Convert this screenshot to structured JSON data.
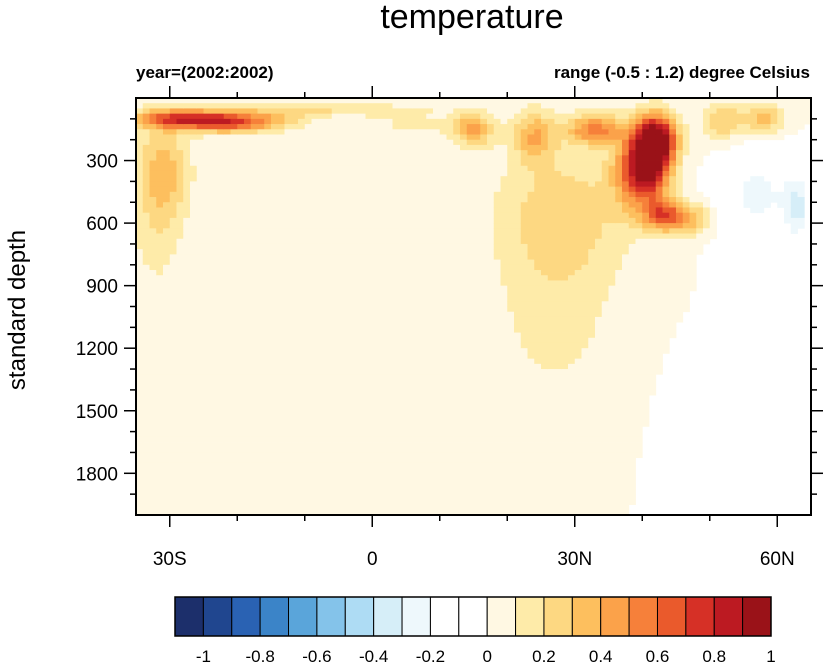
{
  "chart_data": {
    "type": "heatmap",
    "title": "temperature",
    "left_subtitle": "year=(2002:2002)",
    "right_subtitle": "range (-0.5 : 1.2) degree Celsius",
    "ylabel": "standard depth",
    "xlabel": "",
    "x_range": [
      -35,
      65
    ],
    "y_range": [
      0,
      2000
    ],
    "y_reversed": true,
    "x_ticks": [
      {
        "value": -30,
        "label": "30S"
      },
      {
        "value": 0,
        "label": "0"
      },
      {
        "value": 30,
        "label": "30N"
      },
      {
        "value": 60,
        "label": "60N"
      }
    ],
    "y_ticks": [
      {
        "value": 300,
        "label": "300"
      },
      {
        "value": 600,
        "label": "600"
      },
      {
        "value": 900,
        "label": "900"
      },
      {
        "value": 1200,
        "label": "1200"
      },
      {
        "value": 1500,
        "label": "1500"
      },
      {
        "value": 1800,
        "label": "1800"
      }
    ],
    "colorbar": {
      "colors": [
        "#1c2f6b",
        "#20468f",
        "#2a62b3",
        "#3b84c8",
        "#5aa5da",
        "#84c3ea",
        "#aedcf4",
        "#d6eef8",
        "#eef8fc",
        "#ffffff",
        "#ffffff",
        "#fff8e3",
        "#feeba9",
        "#fdd882",
        "#fdbf5e",
        "#fba24a",
        "#f6803a",
        "#ea5a2c",
        "#d63026",
        "#bc1a22",
        "#9a1218"
      ],
      "labels": [
        "-1",
        "-0.8",
        "-0.6",
        "-0.4",
        "-0.2",
        "0",
        "0.2",
        "0.4",
        "0.6",
        "0.8",
        "1"
      ]
    },
    "anomaly_regions": [
      {
        "lat": -28,
        "depth": 100,
        "value": 0.65,
        "lat_spread": 7,
        "depth_spread": 45
      },
      {
        "lat": -22,
        "depth": 120,
        "value": 0.45,
        "lat_spread": 6,
        "depth_spread": 50
      },
      {
        "lat": -16,
        "depth": 110,
        "value": 0.3,
        "lat_spread": 6,
        "depth_spread": 50
      },
      {
        "lat": -31,
        "depth": 350,
        "value": 0.35,
        "lat_spread": 4,
        "depth_spread": 250
      },
      {
        "lat": -32,
        "depth": 700,
        "value": 0.12,
        "lat_spread": 4,
        "depth_spread": 280
      },
      {
        "lat": -5,
        "depth": 60,
        "value": 0.25,
        "lat_spread": 12,
        "depth_spread": 30
      },
      {
        "lat": -3,
        "depth": 70,
        "value": -0.15,
        "lat_spread": 3,
        "depth_spread": 18
      },
      {
        "lat": 6,
        "depth": 130,
        "value": 0.12,
        "lat_spread": 8,
        "depth_spread": 60
      },
      {
        "lat": 15,
        "depth": 150,
        "value": 0.4,
        "lat_spread": 3,
        "depth_spread": 80
      },
      {
        "lat": 24,
        "depth": 180,
        "value": 0.35,
        "lat_spread": 3,
        "depth_spread": 120
      },
      {
        "lat": 33,
        "depth": 150,
        "value": 0.5,
        "lat_spread": 4,
        "depth_spread": 70
      },
      {
        "lat": 28,
        "depth": 550,
        "value": 0.25,
        "lat_spread": 10,
        "depth_spread": 350
      },
      {
        "lat": 27,
        "depth": 1100,
        "value": 0.12,
        "lat_spread": 10,
        "depth_spread": 450
      },
      {
        "lat": 42,
        "depth": 200,
        "value": 1.1,
        "lat_spread": 3,
        "depth_spread": 120
      },
      {
        "lat": 41,
        "depth": 350,
        "value": 0.8,
        "lat_spread": 3,
        "depth_spread": 140
      },
      {
        "lat": 43,
        "depth": 560,
        "value": 0.6,
        "lat_spread": 3,
        "depth_spread": 80
      },
      {
        "lat": 47,
        "depth": 580,
        "value": 0.35,
        "lat_spread": 3,
        "depth_spread": 70
      },
      {
        "lat": 38,
        "depth": 350,
        "value": 0.35,
        "lat_spread": 3,
        "depth_spread": 200
      },
      {
        "lat": 52,
        "depth": 110,
        "value": 0.3,
        "lat_spread": 3,
        "depth_spread": 90
      },
      {
        "lat": 58,
        "depth": 100,
        "value": 0.35,
        "lat_spread": 3,
        "depth_spread": 70
      },
      {
        "lat": 57,
        "depth": 450,
        "value": -0.22,
        "lat_spread": 5,
        "depth_spread": 200
      },
      {
        "lat": 63,
        "depth": 520,
        "value": -0.3,
        "lat_spread": 2,
        "depth_spread": 150
      },
      {
        "lat": 58,
        "depth": 1000,
        "value": -0.12,
        "lat_spread": 5,
        "depth_spread": 400
      },
      {
        "lat": 52,
        "depth": 1600,
        "value": -0.1,
        "lat_spread": 7,
        "depth_spread": 350
      }
    ]
  }
}
